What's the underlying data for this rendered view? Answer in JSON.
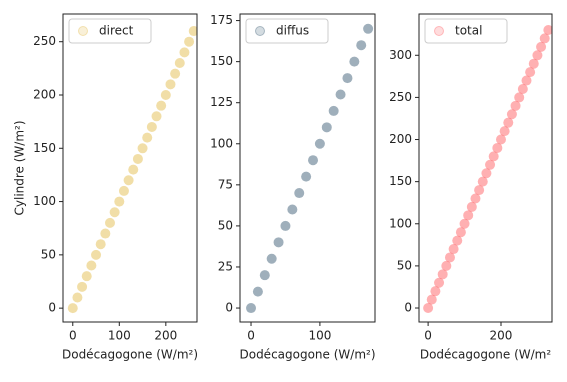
{
  "chart_data": [
    {
      "type": "scatter",
      "xlabel": "Dodécagogone (W/m²)",
      "ylabel": "Cylindre (W/m²)",
      "series": [
        {
          "name": "direct",
          "color": "#e0b53c",
          "x": [
            0,
            10,
            20,
            30,
            40,
            50,
            60,
            70,
            80,
            90,
            100,
            110,
            120,
            130,
            140,
            150,
            160,
            170,
            180,
            190,
            200,
            210,
            220,
            230,
            240,
            250,
            260
          ],
          "values": [
            0,
            10,
            20,
            30,
            40,
            50,
            60,
            70,
            80,
            90,
            100,
            110,
            120,
            130,
            140,
            150,
            160,
            170,
            180,
            190,
            200,
            210,
            220,
            230,
            240,
            250,
            260
          ]
        }
      ],
      "xlim": [
        -21,
        267
      ],
      "ylim": [
        -13,
        276
      ],
      "xticks": [
        0,
        100,
        200
      ],
      "yticks": [
        0,
        50,
        100,
        150,
        200,
        250
      ],
      "legend": "upper left"
    },
    {
      "type": "scatter",
      "xlabel": "Dodécagogone  (W/m²)",
      "series": [
        {
          "name": "diffus",
          "color": "#2a4e68",
          "x": [
            0,
            10,
            20,
            30,
            40,
            50,
            60,
            70,
            80,
            90,
            100,
            110,
            120,
            130,
            140,
            150,
            160,
            170
          ],
          "values": [
            0,
            10,
            20,
            30,
            40,
            50,
            60,
            70,
            80,
            90,
            100,
            110,
            120,
            130,
            140,
            150,
            160,
            170
          ]
        }
      ],
      "xlim": [
        -16,
        180
      ],
      "ylim": [
        -8.5,
        179
      ],
      "xticks": [
        0,
        100
      ],
      "yticks": [
        0,
        25,
        50,
        75,
        100,
        125,
        150,
        175
      ],
      "legend": "upper left"
    },
    {
      "type": "scatter",
      "xlabel": "Dodécagogone  (W/m²",
      "series": [
        {
          "name": "total",
          "color": "#ff5055",
          "x": [
            0,
            10,
            20,
            30,
            40,
            50,
            60,
            70,
            80,
            90,
            100,
            110,
            120,
            130,
            140,
            150,
            160,
            170,
            180,
            190,
            200,
            210,
            220,
            230,
            240,
            250,
            260,
            270,
            280,
            290,
            300,
            310,
            320,
            330
          ],
          "values": [
            0,
            10,
            20,
            30,
            40,
            50,
            60,
            70,
            80,
            90,
            100,
            110,
            120,
            130,
            140,
            150,
            160,
            170,
            180,
            190,
            200,
            210,
            220,
            230,
            240,
            250,
            260,
            270,
            280,
            290,
            300,
            310,
            320,
            330
          ]
        }
      ],
      "xlim": [
        -25,
        340
      ],
      "ylim": [
        -16.6,
        349
      ],
      "xticks": [
        0,
        200
      ],
      "yticks": [
        0,
        50,
        100,
        150,
        200,
        250,
        300
      ],
      "legend": "upper left"
    }
  ]
}
